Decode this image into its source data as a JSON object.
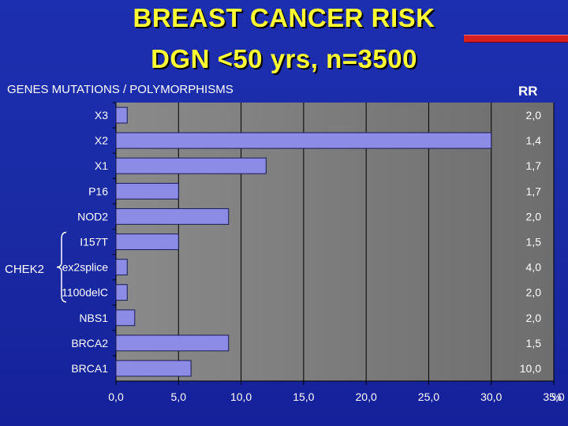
{
  "title_line1": "BREAST CANCER RISK",
  "title_line2": "DGN <50 yrs, n=3500",
  "subheading": "GENES MUTATIONS / POLYMORPHISMS",
  "rr_header": "RR",
  "group_label": "CHEK2",
  "colors": {
    "title": "#ffff33",
    "accent_bar": "#d62020",
    "background": "#1a2aa3",
    "bar_fill": "#8c8ce6",
    "plot_bg": "#7a7a7a"
  },
  "chart_data": {
    "type": "bar",
    "orientation": "horizontal",
    "categories": [
      "X3",
      "X2",
      "X1",
      "P16",
      "NOD2",
      "I157T",
      "ex2splice",
      "1100delC",
      "NBS1",
      "BRCA2",
      "BRCA1"
    ],
    "values": [
      0.9,
      30.0,
      12.0,
      5.0,
      9.0,
      5.0,
      0.9,
      0.9,
      1.5,
      9.0,
      6.0
    ],
    "rr_labels": [
      "2,0",
      "1,4",
      "1,7",
      "1,7",
      "2,0",
      "1,5",
      "4,0",
      "2,0",
      "2,0",
      "1,5",
      "10,0"
    ],
    "xlim": [
      0,
      35
    ],
    "x_ticks": [
      "0,0",
      "5,0",
      "10,0",
      "15,0",
      "20,0",
      "25,0",
      "30,0",
      "35,0"
    ],
    "x_unit": "%",
    "grid": true
  }
}
